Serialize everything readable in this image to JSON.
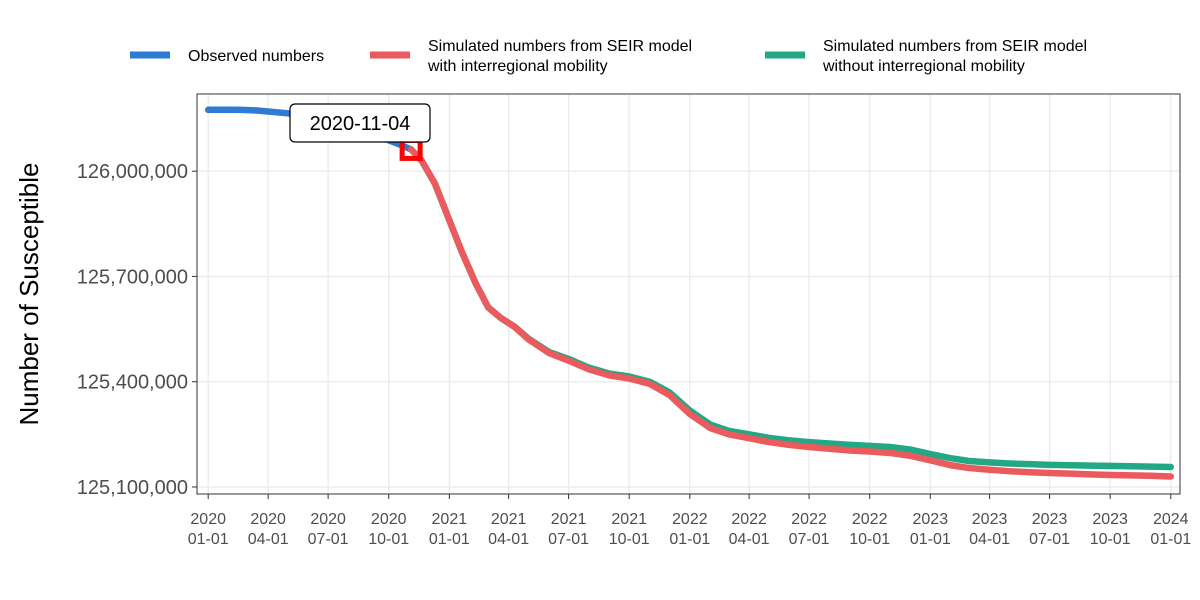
{
  "chart_data": {
    "type": "line",
    "title": "",
    "xlabel": "",
    "ylabel": "Number of Susceptible",
    "xlim": [
      "2019-12-15",
      "2024-01-15"
    ],
    "ylim": [
      125080000,
      126220000
    ],
    "y_ticks": [
      125100000,
      125400000,
      125700000,
      126000000
    ],
    "y_tick_labels": [
      "125,100,000",
      "125,400,000",
      "125,700,000",
      "126,000,000"
    ],
    "x_ticks": [
      "2020-01-01",
      "2020-04-01",
      "2020-07-01",
      "2020-10-01",
      "2021-01-01",
      "2021-04-01",
      "2021-07-01",
      "2021-10-01",
      "2022-01-01",
      "2022-04-01",
      "2022-07-01",
      "2022-10-01",
      "2023-01-01",
      "2023-04-01",
      "2023-07-01",
      "2023-10-01",
      "2024-01-01"
    ],
    "x_tick_labels": [
      [
        "2020",
        "01-01"
      ],
      [
        "2020",
        "04-01"
      ],
      [
        "2020",
        "07-01"
      ],
      [
        "2020",
        "10-01"
      ],
      [
        "2021",
        "01-01"
      ],
      [
        "2021",
        "04-01"
      ],
      [
        "2021",
        "07-01"
      ],
      [
        "2021",
        "10-01"
      ],
      [
        "2022",
        "01-01"
      ],
      [
        "2022",
        "04-01"
      ],
      [
        "2022",
        "07-01"
      ],
      [
        "2022",
        "10-01"
      ],
      [
        "2023",
        "01-01"
      ],
      [
        "2023",
        "04-01"
      ],
      [
        "2023",
        "07-01"
      ],
      [
        "2023",
        "10-01"
      ],
      [
        "2024",
        "01-01"
      ]
    ],
    "grid": true,
    "legend_position": "top",
    "series": [
      {
        "name": "Observed numbers",
        "color": "#2E7BD6",
        "points": [
          [
            "2020-01-01",
            126175000
          ],
          [
            "2020-02-15",
            126175000
          ],
          [
            "2020-03-15",
            126173000
          ],
          [
            "2020-05-01",
            126165000
          ],
          [
            "2020-06-15",
            126150000
          ],
          [
            "2020-07-15",
            126135000
          ],
          [
            "2020-08-15",
            126118000
          ],
          [
            "2020-09-15",
            126100000
          ],
          [
            "2020-10-15",
            126078000
          ],
          [
            "2020-11-04",
            126062000
          ]
        ]
      },
      {
        "name": "Simulated numbers from SEIR model without interregional mobility",
        "color": "#22A884",
        "points": [
          [
            "2020-11-04",
            126062000
          ],
          [
            "2020-11-20",
            126030000
          ],
          [
            "2020-12-10",
            125965000
          ],
          [
            "2021-01-01",
            125860000
          ],
          [
            "2021-01-20",
            125770000
          ],
          [
            "2021-02-10",
            125680000
          ],
          [
            "2021-03-01",
            125612000
          ],
          [
            "2021-03-20",
            125582000
          ],
          [
            "2021-04-10",
            125557000
          ],
          [
            "2021-05-01",
            125523000
          ],
          [
            "2021-06-01",
            125485000
          ],
          [
            "2021-07-01",
            125465000
          ],
          [
            "2021-08-01",
            125440000
          ],
          [
            "2021-09-01",
            125423000
          ],
          [
            "2021-10-01",
            125415000
          ],
          [
            "2021-11-01",
            125400000
          ],
          [
            "2021-12-01",
            125370000
          ],
          [
            "2022-01-01",
            125318000
          ],
          [
            "2022-02-01",
            125278000
          ],
          [
            "2022-03-01",
            125260000
          ],
          [
            "2022-04-01",
            125250000
          ],
          [
            "2022-05-01",
            125240000
          ],
          [
            "2022-06-01",
            125233000
          ],
          [
            "2022-07-01",
            125228000
          ],
          [
            "2022-08-01",
            125224000
          ],
          [
            "2022-09-01",
            125220000
          ],
          [
            "2022-10-01",
            125217000
          ],
          [
            "2022-11-01",
            125214000
          ],
          [
            "2022-12-01",
            125207000
          ],
          [
            "2023-01-01",
            125194000
          ],
          [
            "2023-02-01",
            125182000
          ],
          [
            "2023-03-01",
            125174000
          ],
          [
            "2023-04-01",
            125170000
          ],
          [
            "2023-05-01",
            125167000
          ],
          [
            "2023-06-01",
            125165000
          ],
          [
            "2023-07-01",
            125163000
          ],
          [
            "2023-08-01",
            125162000
          ],
          [
            "2023-09-01",
            125161000
          ],
          [
            "2023-10-01",
            125160000
          ],
          [
            "2023-11-01",
            125159000
          ],
          [
            "2023-12-01",
            125158000
          ],
          [
            "2024-01-01",
            125157000
          ]
        ]
      },
      {
        "name": "Simulated numbers from SEIR model with interregional mobility",
        "color": "#EB5A5C",
        "points": [
          [
            "2020-11-04",
            126062000
          ],
          [
            "2020-11-20",
            126030000
          ],
          [
            "2020-12-10",
            125965000
          ],
          [
            "2021-01-01",
            125860000
          ],
          [
            "2021-01-20",
            125770000
          ],
          [
            "2021-02-10",
            125680000
          ],
          [
            "2021-03-01",
            125612000
          ],
          [
            "2021-03-20",
            125582000
          ],
          [
            "2021-04-10",
            125556000
          ],
          [
            "2021-05-01",
            125521000
          ],
          [
            "2021-06-01",
            125482000
          ],
          [
            "2021-07-01",
            125460000
          ],
          [
            "2021-08-01",
            125435000
          ],
          [
            "2021-09-01",
            125418000
          ],
          [
            "2021-10-01",
            125409000
          ],
          [
            "2021-11-01",
            125394000
          ],
          [
            "2021-12-01",
            125362000
          ],
          [
            "2022-01-01",
            125308000
          ],
          [
            "2022-02-01",
            125268000
          ],
          [
            "2022-03-01",
            125250000
          ],
          [
            "2022-04-01",
            125239000
          ],
          [
            "2022-05-01",
            125228000
          ],
          [
            "2022-06-01",
            125220000
          ],
          [
            "2022-07-01",
            125214000
          ],
          [
            "2022-08-01",
            125209000
          ],
          [
            "2022-09-01",
            125204000
          ],
          [
            "2022-10-01",
            125201000
          ],
          [
            "2022-11-01",
            125197000
          ],
          [
            "2022-12-01",
            125189000
          ],
          [
            "2023-01-01",
            125176000
          ],
          [
            "2023-02-01",
            125162000
          ],
          [
            "2023-03-01",
            125154000
          ],
          [
            "2023-04-01",
            125149000
          ],
          [
            "2023-05-01",
            125145000
          ],
          [
            "2023-06-01",
            125142000
          ],
          [
            "2023-07-01",
            125140000
          ],
          [
            "2023-08-01",
            125138000
          ],
          [
            "2023-09-01",
            125136000
          ],
          [
            "2023-10-01",
            125134000
          ],
          [
            "2023-11-01",
            125133000
          ],
          [
            "2023-12-01",
            125132000
          ],
          [
            "2024-01-01",
            125130000
          ]
        ]
      }
    ],
    "legend": [
      {
        "lines": [
          "Observed numbers"
        ],
        "color": "#2E7BD6"
      },
      {
        "lines": [
          "Simulated numbers from SEIR model",
          "with interregional mobility"
        ],
        "color": "#EB5A5C"
      },
      {
        "lines": [
          "Simulated numbers from SEIR model",
          "without interregional mobility"
        ],
        "color": "#22A884"
      }
    ],
    "annotation": {
      "label": "2020-11-04",
      "x": "2020-11-04",
      "y": 126062000,
      "marker_color": "#FF0000"
    }
  }
}
